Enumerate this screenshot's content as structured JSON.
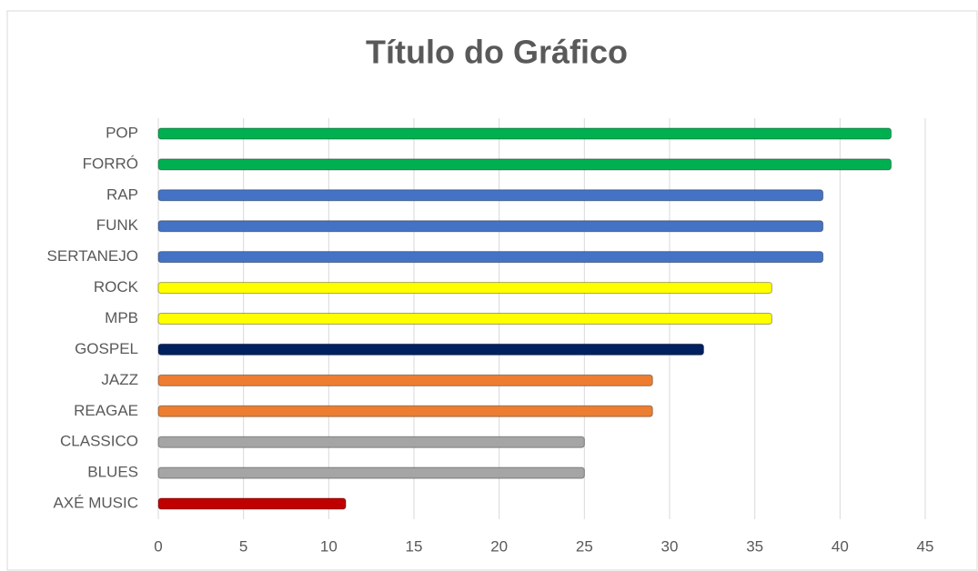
{
  "chart_data": {
    "type": "hbar",
    "title": "Título do Gráfico",
    "categories": [
      "POP",
      "FORRÓ",
      "RAP",
      "FUNK",
      "SERTANEJO",
      "ROCK",
      "MPB",
      "GOSPEL",
      "JAZZ",
      "REAGAE",
      "CLASSICO",
      "BLUES",
      "AXÉ MUSIC"
    ],
    "values": [
      43,
      43,
      39,
      39,
      39,
      36,
      36,
      32,
      29,
      29,
      25,
      25,
      11
    ],
    "colors": [
      "#00b050",
      "#00b050",
      "#4472c4",
      "#4472c4",
      "#4472c4",
      "#ffff00",
      "#ffff00",
      "#002060",
      "#ed7d31",
      "#ed7d31",
      "#a5a5a5",
      "#a5a5a5",
      "#c00000"
    ],
    "xlim": [
      0,
      45
    ],
    "xticks": [
      0,
      5,
      10,
      15,
      20,
      25,
      30,
      35,
      40,
      45
    ],
    "grid": true
  }
}
